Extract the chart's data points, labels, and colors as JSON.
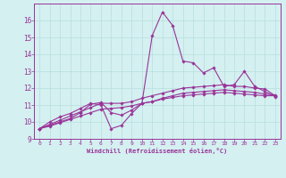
{
  "xlabel": "Windchill (Refroidissement éolien,°C)",
  "ylabel": "",
  "background_color": "#d4f0f0",
  "grid_color": "#b8dede",
  "line_color": "#993399",
  "xlim": [
    -0.5,
    23.5
  ],
  "ylim": [
    9,
    17
  ],
  "xticks": [
    0,
    1,
    2,
    3,
    4,
    5,
    6,
    7,
    8,
    9,
    10,
    11,
    12,
    13,
    14,
    15,
    16,
    17,
    18,
    19,
    20,
    21,
    22,
    23
  ],
  "yticks": [
    9,
    10,
    11,
    12,
    13,
    14,
    15,
    16
  ],
  "series": {
    "line1_x": [
      0,
      1,
      2,
      3,
      4,
      5,
      6,
      7,
      8,
      9,
      10,
      11,
      12,
      13,
      14,
      15,
      16,
      17,
      18,
      19,
      20,
      21,
      22,
      23
    ],
    "line1_y": [
      9.6,
      10.0,
      10.3,
      10.5,
      10.8,
      11.1,
      11.0,
      9.6,
      9.8,
      10.5,
      11.1,
      15.1,
      16.5,
      15.7,
      13.6,
      13.5,
      12.9,
      13.2,
      12.1,
      12.2,
      13.0,
      12.1,
      11.8,
      11.5
    ],
    "line2_x": [
      0,
      1,
      2,
      3,
      4,
      5,
      6,
      7,
      8,
      9,
      10,
      11,
      12,
      13,
      14,
      15,
      16,
      17,
      18,
      19,
      20,
      21,
      22,
      23
    ],
    "line2_y": [
      9.6,
      9.85,
      10.1,
      10.35,
      10.6,
      10.85,
      11.1,
      11.1,
      11.1,
      11.2,
      11.4,
      11.55,
      11.7,
      11.85,
      12.0,
      12.05,
      12.1,
      12.15,
      12.2,
      12.1,
      12.1,
      12.0,
      11.95,
      11.55
    ],
    "line3_x": [
      0,
      1,
      2,
      3,
      4,
      5,
      6,
      7,
      8,
      9,
      10,
      11,
      12,
      13,
      14,
      15,
      16,
      17,
      18,
      19,
      20,
      21,
      22,
      23
    ],
    "line3_y": [
      9.6,
      9.75,
      9.95,
      10.15,
      10.35,
      10.55,
      10.75,
      10.8,
      10.85,
      10.95,
      11.1,
      11.2,
      11.35,
      11.45,
      11.55,
      11.6,
      11.65,
      11.7,
      11.75,
      11.7,
      11.65,
      11.6,
      11.55,
      11.55
    ],
    "line4_x": [
      0,
      1,
      2,
      3,
      4,
      5,
      6,
      7,
      8,
      9,
      10,
      11,
      12,
      13,
      14,
      15,
      16,
      17,
      18,
      19,
      20,
      21,
      22,
      23
    ],
    "line4_y": [
      9.6,
      9.8,
      10.0,
      10.2,
      10.55,
      11.05,
      11.15,
      10.55,
      10.4,
      10.7,
      11.1,
      11.2,
      11.4,
      11.55,
      11.7,
      11.75,
      11.8,
      11.85,
      11.9,
      11.85,
      11.8,
      11.75,
      11.65,
      11.6
    ]
  }
}
